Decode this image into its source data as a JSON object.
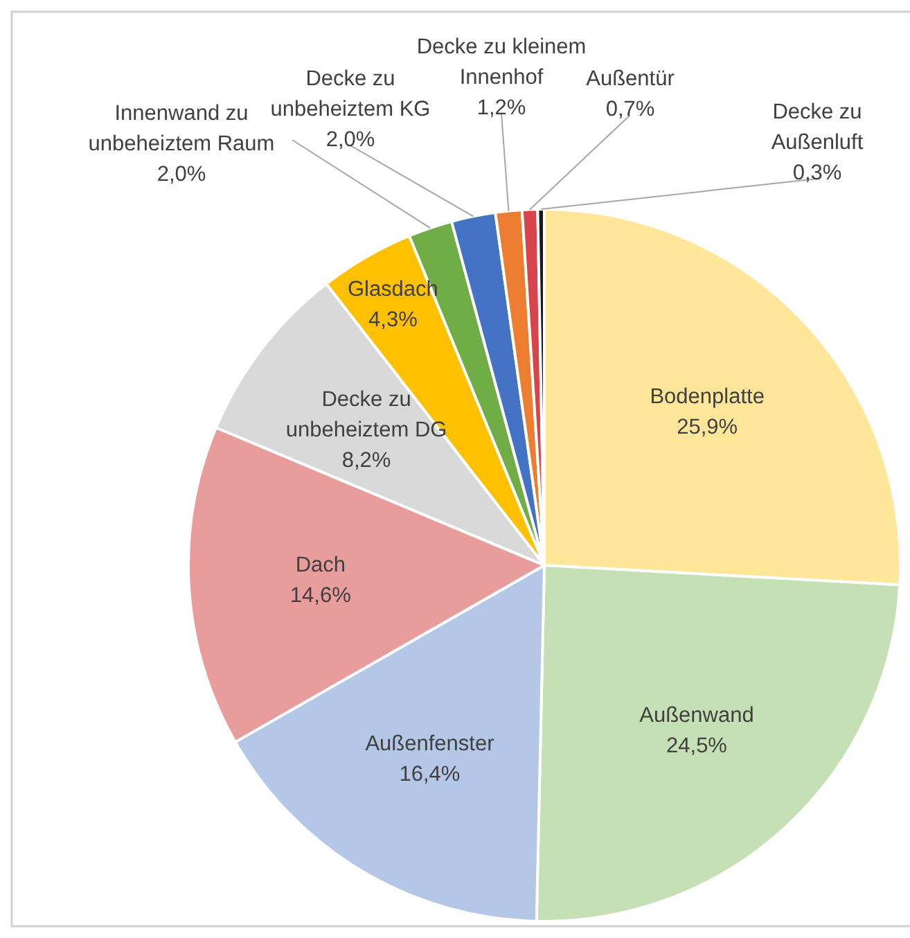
{
  "chart_data": {
    "type": "pie",
    "categories": [
      "Bodenplatte",
      "Außenwand",
      "Außenfenster",
      "Dach",
      "Decke zu unbeheiztem DG",
      "Glasdach",
      "Innenwand zu unbeheiztem Raum",
      "Decke zu unbeheiztem KG",
      "Decke zu kleinem Innenhof",
      "Außentür",
      "Decke zu Außenluft"
    ],
    "values": [
      25.9,
      24.5,
      16.4,
      14.6,
      8.2,
      4.3,
      2.0,
      2.0,
      1.2,
      0.7,
      0.3
    ],
    "colors": [
      "#ffe699",
      "#c5e0b4",
      "#b4c7e7",
      "#e99c9c",
      "#d9d9d9",
      "#ffc000",
      "#70ad47",
      "#4472c4",
      "#ed7d31",
      "#d9434b",
      "#1a1a1a"
    ],
    "value_labels": [
      "25,9%",
      "24,5%",
      "16,4%",
      "14,6%",
      "8,2%",
      "4,3%",
      "2,0%",
      "2,0%",
      "1,2%",
      "0,7%",
      "0,3%"
    ]
  }
}
